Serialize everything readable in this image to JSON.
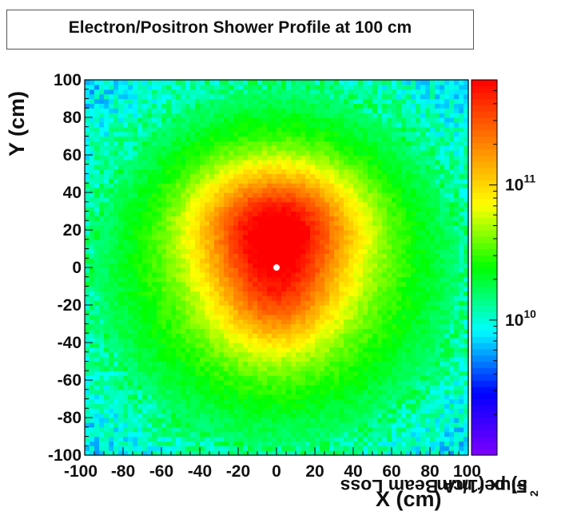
{
  "chart_data": {
    "type": "heatmap",
    "title": "Electron/Positron Shower Profile at 100 cm",
    "xlabel": "X (cm)",
    "ylabel": "Y (cm)",
    "zlabel_parts": [
      "Flux (1/cm",
      "2",
      "s) per mA Beam Loss"
    ],
    "xlim": [
      -100,
      100
    ],
    "ylim": [
      -100,
      100
    ],
    "x_ticks": [
      "-100",
      "-80",
      "-60",
      "-40",
      "-20",
      "0",
      "20",
      "40",
      "60",
      "80",
      "100"
    ],
    "y_ticks": [
      "-100",
      "-80",
      "-60",
      "-40",
      "-20",
      "0",
      "20",
      "40",
      "60",
      "80",
      "100"
    ],
    "z_scale": "log",
    "z_ticks": [
      {
        "base": "10",
        "exp": "10",
        "value": 10000000000.0
      },
      {
        "base": "10",
        "exp": "11",
        "value": 100000000000.0
      }
    ],
    "z_range": [
      1000000000.0,
      600000000000.0
    ],
    "colormap": [
      "#7f00ff",
      "#0000ff",
      "#00ffff",
      "#00ff00",
      "#ffff00",
      "#ff8000",
      "#ff0000"
    ],
    "features": [
      {
        "type": "peak",
        "x": 0,
        "y": 22,
        "sigma_x": 28,
        "sigma_y": 22,
        "relative": 1.0
      },
      {
        "type": "peak",
        "x": 0,
        "y": -18,
        "sigma_x": 21,
        "sigma_y": 19,
        "relative": 0.55
      },
      {
        "type": "beam-hole",
        "x": 0,
        "y": 0
      }
    ]
  }
}
